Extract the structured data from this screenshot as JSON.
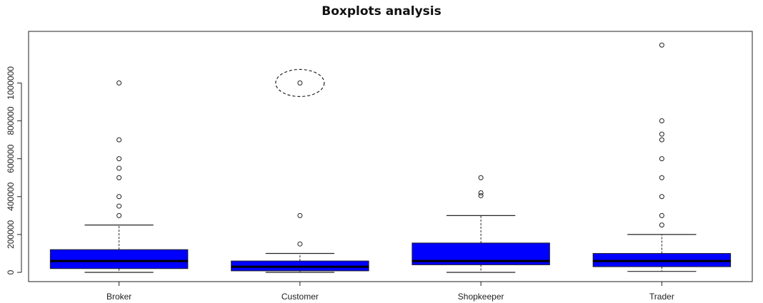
{
  "chart_data": {
    "type": "boxplot",
    "title": "Boxplots analysis",
    "xlabel": "",
    "ylabel": "",
    "ylim": [
      -30000,
      1250000
    ],
    "yticks": [
      0,
      200000,
      400000,
      600000,
      800000,
      1000000
    ],
    "ytick_labels": [
      "0",
      "200000",
      "400000",
      "600000",
      "800000",
      "1000000"
    ],
    "categories": [
      "Broker",
      "Customer",
      "Shopkeeper",
      "Trader"
    ],
    "box_color": "#0000ff",
    "highlight": {
      "category": "Customer",
      "value": 1000000,
      "style": "dashed-ellipse"
    },
    "series": [
      {
        "category": "Broker",
        "whisker_low": 0,
        "q1": 20000,
        "median": 60000,
        "q3": 120000,
        "whisker_high": 250000,
        "outliers": [
          1000000,
          700000,
          600000,
          550000,
          500000,
          400000,
          350000,
          300000
        ]
      },
      {
        "category": "Customer",
        "whisker_low": 0,
        "q1": 8000,
        "median": 30000,
        "q3": 60000,
        "whisker_high": 100000,
        "outliers": [
          1000000,
          300000,
          150000
        ]
      },
      {
        "category": "Shopkeeper",
        "whisker_low": 0,
        "q1": 40000,
        "median": 60000,
        "q3": 155000,
        "whisker_high": 300000,
        "outliers": [
          500000,
          420000,
          405000
        ]
      },
      {
        "category": "Trader",
        "whisker_low": 5000,
        "q1": 30000,
        "median": 60000,
        "q3": 100000,
        "whisker_high": 200000,
        "outliers": [
          1200000,
          800000,
          730000,
          700000,
          600000,
          500000,
          400000,
          300000,
          250000
        ]
      }
    ]
  }
}
